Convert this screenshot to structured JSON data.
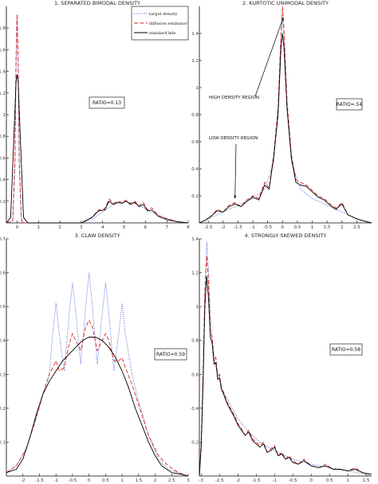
{
  "chart_data": [
    {
      "type": "line",
      "title": "1. SEPARATED   BIMODAL   DENSITY",
      "xlim": [
        -0.5,
        8
      ],
      "ylim": [
        0,
        2
      ],
      "xticks": [
        0,
        1,
        2,
        3,
        4,
        5,
        6,
        7,
        8
      ],
      "xtick_labels": [
        "0",
        "1",
        "2",
        "3",
        "4",
        "5",
        "6",
        "7",
        "8"
      ],
      "yticks": [
        0.2,
        0.4,
        0.6,
        0.8,
        1,
        1.2,
        1.4,
        1.6,
        1.8
      ],
      "ytick_labels": [
        "0.2",
        "0.4",
        "0.6",
        "0.8",
        "1",
        "1.2",
        "1.4",
        "1.6",
        "1.8"
      ],
      "ratio_label": "RATIO=0.13",
      "legend": {
        "position": "top-center",
        "entries": [
          {
            "label": "target density",
            "color": "#3355dd",
            "style": "dotted"
          },
          {
            "label": "diffusion estimator",
            "color": "#dd2222",
            "style": "dashed"
          },
          {
            "label": "standard kde",
            "color": "#000000",
            "style": "solid"
          }
        ]
      },
      "series": [
        {
          "color": "#3355dd",
          "style": "dotted",
          "x": [
            -0.5,
            -0.2,
            -0.1,
            -0.05,
            0,
            0.05,
            0.1,
            0.2,
            0.3,
            0.5,
            3.0,
            3.5,
            4.0,
            4.5,
            5.0,
            5.5,
            6.0,
            6.5,
            7.0,
            7.5,
            8.0
          ],
          "y": [
            0,
            0.02,
            0.5,
            1.4,
            1.9,
            1.4,
            0.5,
            0.02,
            0,
            0,
            0,
            0.03,
            0.1,
            0.17,
            0.2,
            0.18,
            0.13,
            0.08,
            0.04,
            0.01,
            0
          ]
        },
        {
          "color": "#dd2222",
          "style": "dashed",
          "x": [
            -0.5,
            -0.2,
            -0.1,
            -0.05,
            0,
            0.05,
            0.1,
            0.2,
            0.3,
            0.5,
            3.0,
            3.2,
            3.5,
            3.8,
            4.1,
            4.3,
            4.5,
            4.7,
            4.9,
            5.1,
            5.3,
            5.5,
            5.7,
            5.9,
            6.1,
            6.3,
            6.6,
            7.0,
            7.5,
            8.0
          ],
          "y": [
            0,
            0.02,
            0.6,
            1.5,
            1.93,
            1.5,
            0.6,
            0.03,
            0,
            0,
            0,
            0.02,
            0.05,
            0.12,
            0.13,
            0.22,
            0.18,
            0.2,
            0.19,
            0.21,
            0.18,
            0.2,
            0.16,
            0.19,
            0.12,
            0.14,
            0.07,
            0.04,
            0.01,
            0
          ]
        },
        {
          "color": "#000000",
          "style": "solid",
          "x": [
            -0.5,
            -0.3,
            -0.15,
            -0.05,
            0,
            0.05,
            0.15,
            0.3,
            0.5,
            3.0,
            3.2,
            3.5,
            3.8,
            4.1,
            4.3,
            4.5,
            4.7,
            4.9,
            5.1,
            5.3,
            5.5,
            5.7,
            5.9,
            6.1,
            6.3,
            6.6,
            7.0,
            7.5,
            8.0
          ],
          "y": [
            0,
            0.05,
            0.8,
            1.3,
            1.37,
            1.3,
            0.8,
            0.05,
            0,
            0,
            0.02,
            0.05,
            0.11,
            0.12,
            0.2,
            0.17,
            0.19,
            0.18,
            0.2,
            0.17,
            0.19,
            0.15,
            0.17,
            0.11,
            0.12,
            0.06,
            0.03,
            0.01,
            0
          ]
        }
      ]
    },
    {
      "type": "line",
      "title": "2. KURTOTIC   UNIMODAL   DENSITY",
      "xlim": [
        -2.8,
        3
      ],
      "ylim": [
        0,
        1.6
      ],
      "xticks": [
        -2.5,
        -2,
        -1.5,
        -1,
        -0.5,
        0,
        0.5,
        1,
        1.5,
        2,
        2.5
      ],
      "xtick_labels": [
        "-2.5",
        "-2",
        "-1.5",
        "-1",
        "-0.5",
        "0",
        "0.5",
        "1",
        "1.5",
        "2",
        "2.5"
      ],
      "yticks": [
        0.2,
        0.4,
        0.6,
        0.8,
        1,
        1.2,
        1.4
      ],
      "ytick_labels": [
        "0.2",
        "0.4",
        "0.6",
        "0.8",
        "1",
        "1.2",
        "1.4"
      ],
      "ratio_label": "RATIO=.54",
      "annotations": [
        {
          "text": "HIGH DENSITY REGION",
          "arrow_to": [
            0.03,
            1.52
          ]
        },
        {
          "text": "LOW DENSITY REGION",
          "arrow_to": [
            -1.6,
            0.18
          ]
        }
      ],
      "series": [
        {
          "color": "#3355dd",
          "style": "dotted",
          "x": [
            -2.8,
            -2.5,
            -2.0,
            -1.5,
            -1.0,
            -0.6,
            -0.3,
            -0.15,
            -0.05,
            0,
            0.05,
            0.15,
            0.3,
            0.6,
            1.0,
            1.5,
            2.0,
            2.5,
            3.0
          ],
          "y": [
            0,
            0.03,
            0.08,
            0.13,
            0.18,
            0.25,
            0.45,
            0.85,
            1.4,
            1.5,
            1.4,
            0.85,
            0.45,
            0.25,
            0.18,
            0.13,
            0.08,
            0.03,
            0
          ]
        },
        {
          "color": "#dd2222",
          "style": "dashed",
          "x": [
            -2.8,
            -2.6,
            -2.4,
            -2.2,
            -2.0,
            -1.8,
            -1.6,
            -1.4,
            -1.2,
            -1.0,
            -0.8,
            -0.6,
            -0.45,
            -0.3,
            -0.15,
            -0.05,
            0,
            0.05,
            0.15,
            0.3,
            0.45,
            0.6,
            0.8,
            1.0,
            1.2,
            1.4,
            1.6,
            1.8,
            2.0,
            2.2,
            2.5,
            2.8,
            3.0
          ],
          "y": [
            0,
            0.02,
            0.05,
            0.1,
            0.08,
            0.13,
            0.15,
            0.12,
            0.17,
            0.2,
            0.18,
            0.3,
            0.26,
            0.5,
            0.85,
            1.4,
            1.6,
            1.42,
            0.9,
            0.5,
            0.32,
            0.3,
            0.28,
            0.24,
            0.2,
            0.18,
            0.14,
            0.11,
            0.15,
            0.06,
            0.03,
            0.01,
            0
          ]
        },
        {
          "color": "#000000",
          "style": "solid",
          "x": [
            -2.8,
            -2.6,
            -2.4,
            -2.2,
            -2.0,
            -1.8,
            -1.6,
            -1.4,
            -1.2,
            -1.0,
            -0.8,
            -0.6,
            -0.45,
            -0.3,
            -0.15,
            -0.05,
            0,
            0.05,
            0.15,
            0.3,
            0.45,
            0.6,
            0.8,
            1.0,
            1.2,
            1.4,
            1.6,
            1.8,
            2.0,
            2.2,
            2.5,
            2.8,
            3.0
          ],
          "y": [
            0,
            0.02,
            0.05,
            0.09,
            0.08,
            0.12,
            0.14,
            0.12,
            0.16,
            0.19,
            0.17,
            0.28,
            0.25,
            0.48,
            0.8,
            1.3,
            1.4,
            1.3,
            0.85,
            0.48,
            0.3,
            0.28,
            0.27,
            0.23,
            0.19,
            0.17,
            0.13,
            0.1,
            0.14,
            0.06,
            0.03,
            0.01,
            0
          ]
        }
      ]
    },
    {
      "type": "line",
      "title": "3. CLAW   DENSITY",
      "xlim": [
        -2.5,
        3
      ],
      "ylim": [
        0,
        0.7
      ],
      "xticks": [
        -2,
        -1.5,
        -1,
        -0.5,
        0,
        0.5,
        1,
        1.5,
        2,
        2.5,
        3
      ],
      "xtick_labels": [
        "-2",
        "-1.5",
        "-1",
        "-0.5",
        "0",
        "0.5",
        "1",
        "1.5",
        "2",
        "2.5",
        "3"
      ],
      "yticks": [
        0.1,
        0.2,
        0.3,
        0.4,
        0.5,
        0.6,
        0.7
      ],
      "ytick_labels": [
        "0.1",
        "0.2",
        "0.3",
        "0.4",
        "0.5",
        "0.6",
        "0.7"
      ],
      "ratio_label": "RATIO=0.59",
      "series": [
        {
          "color": "#3355dd",
          "style": "dotted",
          "x": [
            -2.5,
            -2.2,
            -1.9,
            -1.6,
            -1.4,
            -1.2,
            -1.1,
            -1.0,
            -0.9,
            -0.75,
            -0.6,
            -0.5,
            -0.4,
            -0.25,
            -0.1,
            0,
            0.1,
            0.25,
            0.4,
            0.5,
            0.6,
            0.75,
            0.9,
            1.0,
            1.1,
            1.3,
            1.5,
            1.8,
            2.1,
            2.4,
            2.7,
            3.0
          ],
          "y": [
            0.01,
            0.03,
            0.08,
            0.17,
            0.24,
            0.3,
            0.42,
            0.51,
            0.42,
            0.31,
            0.48,
            0.57,
            0.48,
            0.33,
            0.5,
            0.6,
            0.5,
            0.33,
            0.48,
            0.57,
            0.48,
            0.31,
            0.42,
            0.51,
            0.42,
            0.3,
            0.22,
            0.12,
            0.05,
            0.02,
            0.01,
            0
          ]
        },
        {
          "color": "#dd2222",
          "style": "dashed",
          "x": [
            -2.5,
            -2.2,
            -1.9,
            -1.6,
            -1.4,
            -1.2,
            -1.1,
            -1.0,
            -0.9,
            -0.75,
            -0.6,
            -0.5,
            -0.4,
            -0.25,
            -0.1,
            0,
            0.1,
            0.25,
            0.4,
            0.5,
            0.6,
            0.75,
            0.9,
            1.0,
            1.1,
            1.3,
            1.5,
            1.8,
            2.1,
            2.4,
            2.7,
            3.0
          ],
          "y": [
            0.01,
            0.03,
            0.08,
            0.17,
            0.24,
            0.3,
            0.32,
            0.34,
            0.31,
            0.32,
            0.39,
            0.42,
            0.4,
            0.37,
            0.44,
            0.46,
            0.44,
            0.37,
            0.4,
            0.42,
            0.4,
            0.34,
            0.34,
            0.35,
            0.32,
            0.27,
            0.21,
            0.12,
            0.06,
            0.03,
            0.01,
            0
          ]
        },
        {
          "color": "#000000",
          "style": "solid",
          "x": [
            -2.5,
            -2.2,
            -2.0,
            -1.8,
            -1.6,
            -1.4,
            -1.2,
            -1.0,
            -0.8,
            -0.6,
            -0.4,
            -0.2,
            0,
            0.2,
            0.4,
            0.6,
            0.8,
            1.0,
            1.2,
            1.4,
            1.6,
            1.8,
            2.0,
            2.2,
            2.5,
            2.8,
            3.0
          ],
          "y": [
            0.01,
            0.02,
            0.05,
            0.11,
            0.18,
            0.24,
            0.28,
            0.31,
            0.34,
            0.36,
            0.38,
            0.4,
            0.41,
            0.41,
            0.4,
            0.38,
            0.35,
            0.31,
            0.26,
            0.2,
            0.15,
            0.1,
            0.06,
            0.03,
            0.01,
            0.005,
            0
          ]
        }
      ]
    },
    {
      "type": "line",
      "title": "4. STRONGLY   SKEWED   DENSITY",
      "xlim": [
        -3.05,
        1.65
      ],
      "ylim": [
        0,
        1.4
      ],
      "xticks": [
        -3,
        -2.5,
        -2,
        -1.5,
        -1,
        -0.5,
        0,
        0.5,
        1,
        1.5
      ],
      "xtick_labels": [
        "-3",
        "-2.5",
        "-2",
        "-1.5",
        "-1",
        "-0.5",
        "0",
        "0.5",
        "1",
        "1.5"
      ],
      "yticks": [
        0.2,
        0.4,
        0.6,
        0.8,
        1,
        1.2,
        1.4
      ],
      "ytick_labels": [
        "0.2",
        "0.4",
        "0.6",
        "0.8",
        "1",
        "1.2",
        "1.4"
      ],
      "ratio_label": "RATIO=0.58",
      "series": [
        {
          "color": "#3355dd",
          "style": "dotted",
          "x": [
            -3.05,
            -3.0,
            -2.95,
            -2.9,
            -2.85,
            -2.8,
            -2.75,
            -2.7,
            -2.65,
            -2.6,
            -2.5,
            -2.4,
            -2.2,
            -2.0,
            -1.7,
            -1.4,
            -1.0,
            -0.5,
            0,
            0.5,
            1.0,
            1.5,
            1.65
          ],
          "y": [
            0,
            0.15,
            0.5,
            1.05,
            1.38,
            1.2,
            0.95,
            0.8,
            0.72,
            0.65,
            0.58,
            0.5,
            0.42,
            0.34,
            0.26,
            0.2,
            0.15,
            0.1,
            0.07,
            0.05,
            0.03,
            0.01,
            0
          ]
        },
        {
          "color": "#dd2222",
          "style": "dashed",
          "x": [
            -3.05,
            -3.0,
            -2.95,
            -2.9,
            -2.85,
            -2.8,
            -2.75,
            -2.7,
            -2.65,
            -2.6,
            -2.55,
            -2.5,
            -2.45,
            -2.4,
            -2.3,
            -2.2,
            -2.1,
            -2.0,
            -1.9,
            -1.8,
            -1.7,
            -1.6,
            -1.5,
            -1.4,
            -1.3,
            -1.2,
            -1.1,
            -1.0,
            -0.9,
            -0.8,
            -0.7,
            -0.6,
            -0.5,
            -0.35,
            -0.2,
            0,
            0.2,
            0.4,
            0.6,
            0.8,
            1.0,
            1.2,
            1.4,
            1.65
          ],
          "y": [
            0,
            0.2,
            0.6,
            1.1,
            1.3,
            1.15,
            0.85,
            0.82,
            0.68,
            0.7,
            0.58,
            0.6,
            0.52,
            0.5,
            0.44,
            0.4,
            0.36,
            0.31,
            0.28,
            0.24,
            0.27,
            0.22,
            0.2,
            0.18,
            0.2,
            0.14,
            0.16,
            0.18,
            0.12,
            0.14,
            0.1,
            0.12,
            0.09,
            0.07,
            0.1,
            0.06,
            0.05,
            0.07,
            0.04,
            0.04,
            0.03,
            0.05,
            0.02,
            0.01
          ]
        },
        {
          "color": "#000000",
          "style": "solid",
          "x": [
            -3.05,
            -3.0,
            -2.95,
            -2.9,
            -2.85,
            -2.8,
            -2.75,
            -2.7,
            -2.65,
            -2.6,
            -2.55,
            -2.5,
            -2.45,
            -2.4,
            -2.3,
            -2.2,
            -2.1,
            -2.0,
            -1.9,
            -1.8,
            -1.7,
            -1.6,
            -1.5,
            -1.4,
            -1.3,
            -1.2,
            -1.1,
            -1.0,
            -0.9,
            -0.8,
            -0.7,
            -0.6,
            -0.5,
            -0.35,
            -0.2,
            0,
            0.2,
            0.4,
            0.6,
            0.8,
            1.0,
            1.2,
            1.4,
            1.65
          ],
          "y": [
            0,
            0.18,
            0.55,
            1.0,
            1.18,
            1.05,
            0.82,
            0.78,
            0.66,
            0.67,
            0.57,
            0.58,
            0.51,
            0.49,
            0.43,
            0.39,
            0.35,
            0.3,
            0.27,
            0.24,
            0.26,
            0.21,
            0.19,
            0.17,
            0.19,
            0.14,
            0.15,
            0.17,
            0.12,
            0.13,
            0.1,
            0.11,
            0.08,
            0.07,
            0.09,
            0.06,
            0.05,
            0.06,
            0.04,
            0.04,
            0.03,
            0.04,
            0.02,
            0.01
          ]
        }
      ]
    }
  ]
}
